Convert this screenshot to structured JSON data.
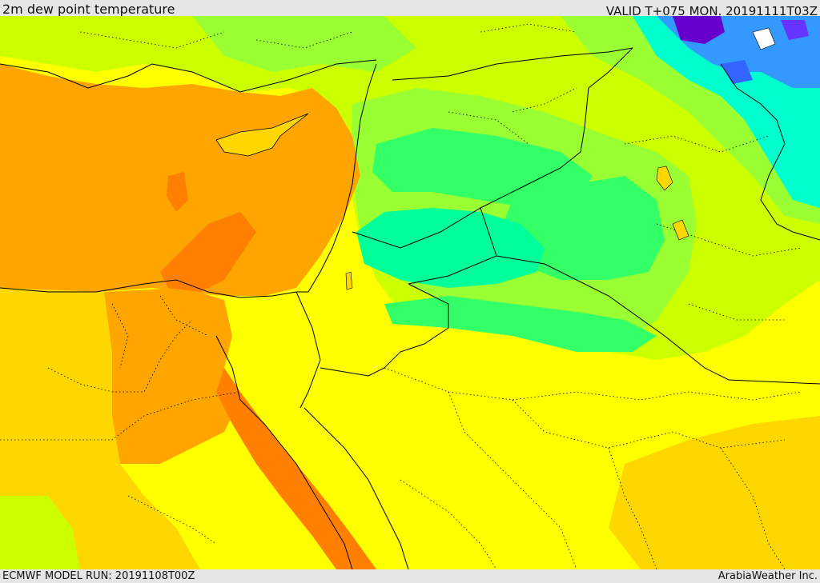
{
  "header": {
    "title": "2m dew point temperature",
    "valid": "VALID T+075 MON. 20191111T03Z"
  },
  "footer": {
    "model_run": "ECMWF MODEL RUN: 20191108T00Z",
    "credit": "ArabiaWeather Inc."
  },
  "colors": {
    "orange_dark": "#ff7f00",
    "orange": "#ffa500",
    "yellow_orange": "#ffd700",
    "yellow": "#ffff00",
    "yellow_green": "#ccff00",
    "green_light": "#99ff33",
    "green": "#33ff66",
    "cyan_green": "#00ff99",
    "cyan": "#00ffcc",
    "blue": "#3366ff",
    "purple": "#6600cc",
    "boundary": "#000000"
  }
}
